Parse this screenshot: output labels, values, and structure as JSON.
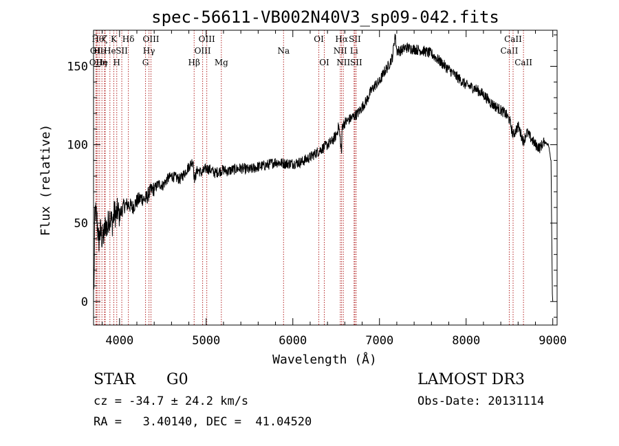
{
  "chart_data": {
    "type": "line",
    "title": "spec-56611-VB002N40V3_sp09-042.fits",
    "xlabel": "Wavelength (Å)",
    "ylabel": "Flux (relative)",
    "xlim": [
      3700,
      9050
    ],
    "ylim": [
      -15,
      173
    ],
    "x_ticks": [
      4000,
      5000,
      6000,
      7000,
      8000,
      9000
    ],
    "y_ticks": [
      0,
      50,
      100,
      150
    ],
    "series": [
      {
        "name": "flux",
        "x": [
          3700,
          3705,
          3712,
          3720,
          3740,
          3760,
          3780,
          3800,
          3820,
          3840,
          3860,
          3880,
          3900,
          3920,
          3940,
          3960,
          3980,
          4000,
          4050,
          4100,
          4150,
          4200,
          4250,
          4300,
          4350,
          4400,
          4450,
          4500,
          4550,
          4600,
          4650,
          4700,
          4750,
          4800,
          4850,
          4862,
          4900,
          4950,
          5000,
          5050,
          5100,
          5150,
          5200,
          5250,
          5300,
          5400,
          5500,
          5600,
          5700,
          5800,
          5900,
          6000,
          6100,
          6200,
          6300,
          6350,
          6400,
          6450,
          6500,
          6530,
          6563,
          6570,
          6600,
          6650,
          6700,
          6750,
          6800,
          6850,
          6900,
          6950,
          7000,
          7050,
          7100,
          7150,
          7180,
          7200,
          7250,
          7300,
          7400,
          7500,
          7600,
          7700,
          7800,
          7900,
          8000,
          8100,
          8200,
          8300,
          8400,
          8450,
          8500,
          8542,
          8600,
          8662,
          8700,
          8750,
          8800,
          8850,
          8900,
          8950,
          8980,
          8995,
          9000
        ],
        "values": [
          22,
          5,
          48,
          58,
          52,
          38,
          45,
          40,
          42,
          50,
          46,
          55,
          52,
          50,
          57,
          55,
          58,
          55,
          61,
          62,
          60,
          64,
          66,
          65,
          70,
          72,
          75,
          74,
          78,
          80,
          79,
          78,
          82,
          86,
          90,
          78,
          84,
          82,
          85,
          84,
          82,
          83,
          84,
          83,
          84,
          85,
          84,
          86,
          87,
          89,
          88,
          88,
          89,
          92,
          96,
          98,
          100,
          102,
          106,
          112,
          95,
          112,
          114,
          116,
          118,
          120,
          124,
          128,
          134,
          138,
          140,
          146,
          150,
          156,
          170,
          160,
          160,
          162,
          161,
          160,
          158,
          153,
          148,
          143,
          138,
          136,
          132,
          126,
          122,
          120,
          116,
          106,
          112,
          102,
          108,
          104,
          100,
          98,
          102,
          100,
          90,
          5,
          0
        ]
      }
    ],
    "line_markers": [
      {
        "x": 3727,
        "row": 2,
        "label": "OII"
      },
      {
        "x": 3736,
        "row": 1,
        "label": "OII"
      },
      {
        "x": 3750,
        "row": 0,
        "label": "Hθ"
      },
      {
        "x": 3770,
        "row": 1,
        "label": "He"
      },
      {
        "x": 3797,
        "row": 2,
        "label": "He"
      },
      {
        "x": 3826,
        "row": 2,
        "label": "η"
      },
      {
        "x": 3835,
        "row": 0,
        "label": "ζ"
      },
      {
        "x": 3889,
        "row": 1,
        "label": "He"
      },
      {
        "x": 3934,
        "row": 0,
        "label": "K"
      },
      {
        "x": 3968,
        "row": 2,
        "label": "H"
      },
      {
        "x": 4026,
        "row": 1,
        "label": "SII"
      },
      {
        "x": 4102,
        "row": 0,
        "label": "Hδ"
      },
      {
        "x": 4300,
        "row": 2,
        "label": "G"
      },
      {
        "x": 4340,
        "row": 1,
        "label": "Hγ"
      },
      {
        "x": 4363,
        "row": 0,
        "label": "OIII"
      },
      {
        "x": 4861,
        "row": 2,
        "label": "Hβ"
      },
      {
        "x": 4959,
        "row": 1,
        "label": "OIII"
      },
      {
        "x": 5007,
        "row": 0,
        "label": "OIII"
      },
      {
        "x": 5175,
        "row": 2,
        "label": "Mg"
      },
      {
        "x": 5893,
        "row": 1,
        "label": "Na"
      },
      {
        "x": 6300,
        "row": 0,
        "label": "OI"
      },
      {
        "x": 6363,
        "row": 2,
        "label": "OI"
      },
      {
        "x": 6548,
        "row": 1,
        "label": "NII"
      },
      {
        "x": 6563,
        "row": 0,
        "label": "Hα"
      },
      {
        "x": 6583,
        "row": 2,
        "label": "NII"
      },
      {
        "x": 6707,
        "row": 1,
        "label": "Li"
      },
      {
        "x": 6716,
        "row": 0,
        "label": "SII"
      },
      {
        "x": 6731,
        "row": 2,
        "label": "SII"
      },
      {
        "x": 8498,
        "row": 1,
        "label": "CaII"
      },
      {
        "x": 8542,
        "row": 0,
        "label": "CaII"
      },
      {
        "x": 8662,
        "row": 2,
        "label": "CaII"
      }
    ]
  },
  "info": {
    "object_class": "STAR",
    "subclass": "G0",
    "survey": "LAMOST DR3",
    "cz": "cz = -34.7 ± 24.2 km/s",
    "obs_date": "Obs-Date: 20131114",
    "coords": "RA =   3.40140, DEC =  41.04520"
  },
  "colors": {
    "spectrum": "#000000",
    "marker_line": "#b22222",
    "axis": "#000000"
  }
}
